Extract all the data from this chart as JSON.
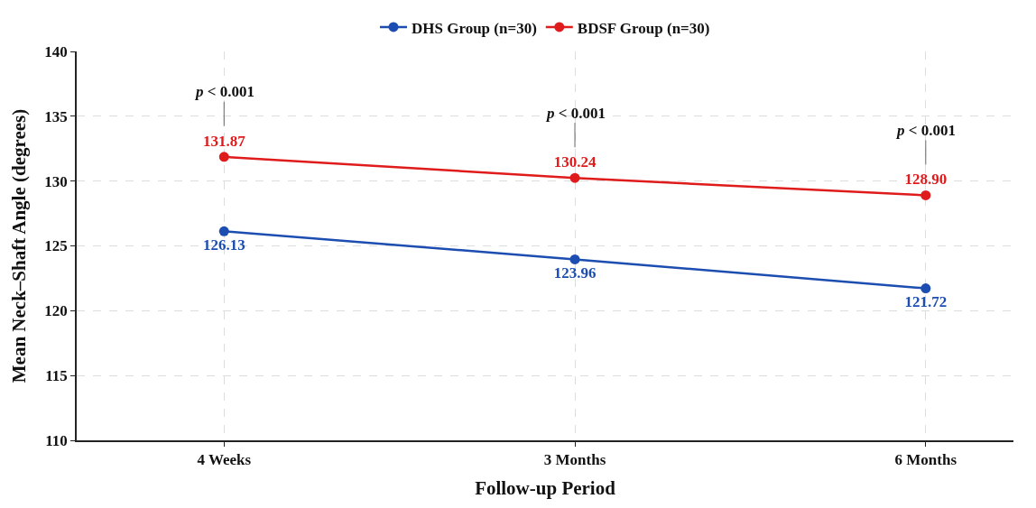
{
  "chart_data": {
    "type": "line",
    "xlabel": "Follow-up Period",
    "ylabel": "Mean Neck–Shaft Angle (degrees)",
    "categories": [
      "4 Weeks",
      "3 Months",
      "6 Months"
    ],
    "series": [
      {
        "name": "DHS Group (n=30)",
        "color": "#1c4db0",
        "values": [
          126.13,
          123.96,
          121.72
        ],
        "value_labels": [
          "126.13",
          "123.96",
          "121.72"
        ]
      },
      {
        "name": "BDSF Group (n=30)",
        "color": "#e01b1b",
        "values": [
          131.87,
          130.24,
          128.9
        ],
        "value_labels": [
          "131.87",
          "130.24",
          "128.90"
        ]
      }
    ],
    "ylim": [
      110,
      140
    ],
    "yticks": [
      110,
      115,
      120,
      125,
      130,
      135,
      140
    ],
    "grid": true,
    "legend": "top",
    "marker": "circle",
    "line_style": "solid",
    "annotations": [
      "p < 0.001",
      "p < 0.001",
      "p < 0.001"
    ]
  }
}
